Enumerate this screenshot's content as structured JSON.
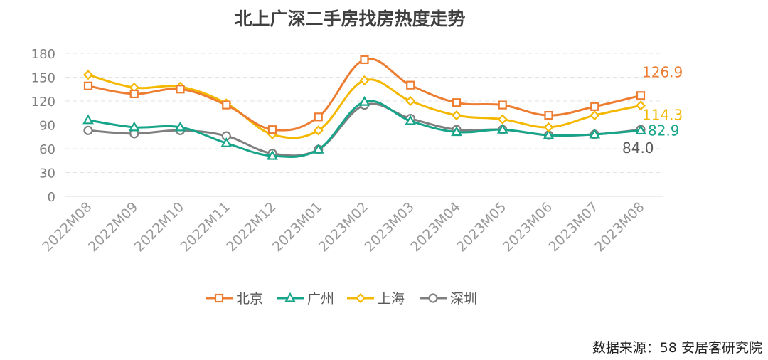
{
  "chart_data": {
    "type": "line",
    "title": "北上广深二手房找房热度走势",
    "x": [
      "2022M08",
      "2022M09",
      "2022M10",
      "2022M11",
      "2022M12",
      "2023M01",
      "2023M02",
      "2023M03",
      "2023M04",
      "2023M05",
      "2023M06",
      "2023M07",
      "2023M08"
    ],
    "ylim": [
      0,
      180
    ],
    "yticks": [
      "0",
      "30",
      "60",
      "90",
      "120",
      "150",
      "180"
    ],
    "grid": true,
    "legend_position": "bottom",
    "series": [
      {
        "name": "北京",
        "color": "#ED7D31",
        "marker": "square",
        "values": [
          139,
          129,
          135,
          115,
          84,
          100,
          172,
          140,
          118,
          115,
          102,
          113,
          126.9
        ],
        "end_label": "126.9"
      },
      {
        "name": "广州",
        "color": "#17A58A",
        "marker": "triangle",
        "values": [
          96,
          87,
          87,
          67,
          51,
          59,
          119,
          95,
          81,
          84,
          77,
          78,
          82.9
        ],
        "end_label": "82.9"
      },
      {
        "name": "上海",
        "color": "#F5B800",
        "marker": "diamond",
        "values": [
          153,
          137,
          138,
          117,
          78,
          83,
          146,
          120,
          102,
          97,
          87,
          102,
          114.3
        ],
        "end_label": "114.3"
      },
      {
        "name": "深圳",
        "color": "#7F7F7F",
        "marker": "circle",
        "values": [
          83,
          79,
          83,
          76,
          54,
          59,
          115,
          98,
          84,
          84,
          77,
          78,
          84.0
        ],
        "end_label": "84.0"
      }
    ]
  },
  "footer": {
    "source": "数据来源：58 安居客研究院"
  }
}
